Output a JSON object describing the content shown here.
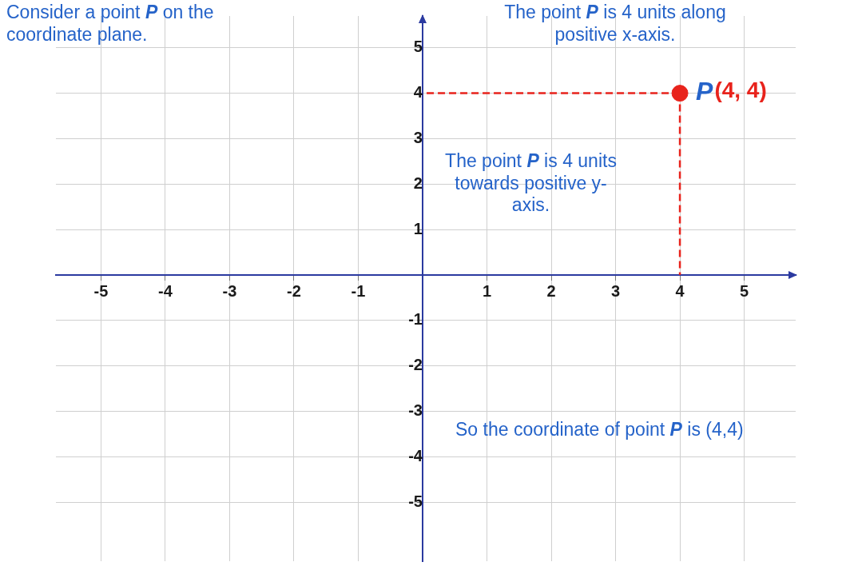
{
  "chart_data": {
    "type": "scatter",
    "point_names": [
      "P"
    ],
    "x": [
      4
    ],
    "values": [
      4
    ],
    "value_labels": [
      "(4, 4)"
    ],
    "data_labels": true,
    "color": "#e8231c",
    "marker": "circle",
    "line_style": "dashed",
    "xlim": [
      -5.7,
      5.8
    ],
    "ylim": [
      -6.3,
      5.7
    ],
    "xticks": [
      -5,
      -4,
      -3,
      -2,
      -1,
      1,
      2,
      3,
      4,
      5
    ],
    "yticks": [
      -5,
      -4,
      -3,
      -2,
      -1,
      1,
      2,
      3,
      4,
      5
    ],
    "grid": true,
    "annotations": [
      "Consider a point P on the coordinate plane.",
      "The point P is 4 units along positive x-axis.",
      "The point P is 4 units towards positive y-axis.",
      "So the coordinate of point P is (4,4)"
    ]
  }
}
